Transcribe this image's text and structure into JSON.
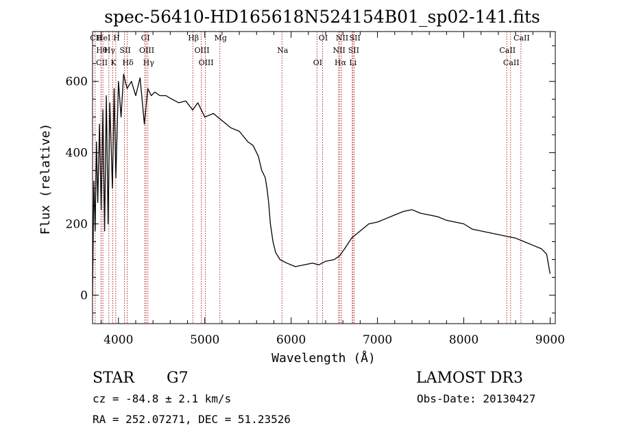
{
  "chart_data": {
    "type": "line",
    "title": "spec-56410-HD165618N524154B01_sp02-141.fits",
    "xlabel": "Wavelength (Å)",
    "ylabel": "Flux (relative)",
    "xlim": [
      3700,
      9060
    ],
    "ylim": [
      -80,
      740
    ],
    "x_ticks": [
      4000,
      5000,
      6000,
      7000,
      8000,
      9000
    ],
    "y_ticks": [
      0,
      200,
      400,
      600
    ],
    "grid": false,
    "series": [
      {
        "x": [
          3700,
          3715,
          3730,
          3745,
          3760,
          3780,
          3800,
          3820,
          3840,
          3860,
          3880,
          3900,
          3930,
          3950,
          3970,
          4000,
          4030,
          4060,
          4100,
          4150,
          4200,
          4250,
          4300,
          4340,
          4380,
          4420,
          4480,
          4550,
          4620,
          4700,
          4780,
          4860,
          4920,
          5000,
          5100,
          5200,
          5300,
          5400,
          5500,
          5560,
          5620,
          5660,
          5700,
          5720,
          5740,
          5760,
          5790,
          5820,
          5870,
          5950,
          6050,
          6150,
          6250,
          6320,
          6400,
          6500,
          6560,
          6620,
          6700,
          6800,
          6900,
          7000,
          7100,
          7200,
          7300,
          7400,
          7500,
          7600,
          7700,
          7800,
          7900,
          8000,
          8100,
          8200,
          8300,
          8400,
          8500,
          8600,
          8700,
          8800,
          8900,
          8960,
          9000
        ],
        "y": [
          0,
          320,
          180,
          430,
          260,
          480,
          240,
          520,
          180,
          560,
          200,
          540,
          300,
          580,
          330,
          600,
          500,
          620,
          580,
          600,
          560,
          610,
          480,
          580,
          560,
          570,
          560,
          560,
          550,
          540,
          545,
          520,
          540,
          500,
          510,
          490,
          470,
          460,
          430,
          420,
          390,
          350,
          330,
          300,
          260,
          200,
          150,
          120,
          100,
          90,
          80,
          85,
          90,
          85,
          95,
          100,
          110,
          130,
          160,
          180,
          200,
          205,
          215,
          225,
          235,
          240,
          230,
          225,
          220,
          210,
          205,
          200,
          185,
          180,
          175,
          170,
          165,
          160,
          150,
          140,
          130,
          115,
          60
        ]
      }
    ],
    "lines": [
      {
        "label": "CII",
        "x": 3730
      },
      {
        "label": "Hθ",
        "x": 3798
      },
      {
        "label": "CII",
        "x": 3800
      },
      {
        "label": "HeI",
        "x": 3820
      },
      {
        "label": "Hγ",
        "x": 3889
      },
      {
        "label": "K",
        "x": 3934
      },
      {
        "label": "H",
        "x": 3969
      },
      {
        "label": "SII",
        "x": 4070
      },
      {
        "label": "Hδ",
        "x": 4102
      },
      {
        "label": "GI",
        "x": 4305
      },
      {
        "label": "OIII",
        "x": 4320
      },
      {
        "label": "Hγ",
        "x": 4341
      },
      {
        "label": "Hβ",
        "x": 4861
      },
      {
        "label": "OIII",
        "x": 4959
      },
      {
        "label": "OIII",
        "x": 5007
      },
      {
        "label": "Mg",
        "x": 5175
      },
      {
        "label": "Na",
        "x": 5894
      },
      {
        "label": "OI",
        "x": 6300
      },
      {
        "label": "OI",
        "x": 6364
      },
      {
        "label": "NII",
        "x": 6548
      },
      {
        "label": "Hα",
        "x": 6563
      },
      {
        "label": "NII",
        "x": 6583
      },
      {
        "label": "SII",
        "x": 6716
      },
      {
        "label": "Li",
        "x": 6708
      },
      {
        "label": "SII",
        "x": 6731
      },
      {
        "label": "CaII",
        "x": 8498
      },
      {
        "label": "CaII",
        "x": 8542
      },
      {
        "label": "CaII",
        "x": 8662
      }
    ],
    "line_color": "#b22222"
  },
  "info": {
    "object_class": "STAR",
    "subclass": "G7",
    "survey": "LAMOST DR3",
    "redshift": "cz = -84.8 ± 2.1 km/s",
    "obs_date": "Obs-Date: 20130427",
    "coords": "RA = 252.07271, DEC =  51.23526"
  }
}
